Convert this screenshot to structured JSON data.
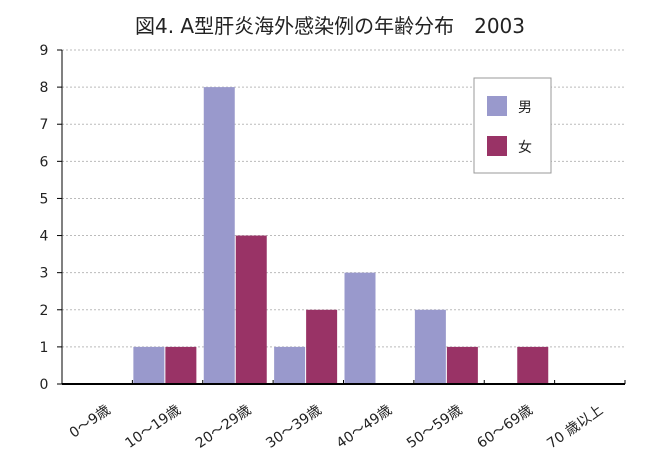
{
  "chart_data": {
    "type": "bar",
    "title": "図4. A型肝炎海外感染例の年齢分布　2003",
    "categories": [
      "0～9歳",
      "10～19歳",
      "20～29歳",
      "30～39歳",
      "40～49歳",
      "50～59歳",
      "60～69歳",
      "70 歳以上"
    ],
    "series": [
      {
        "name": "男",
        "values": [
          0,
          1,
          8,
          1,
          3,
          2,
          0,
          0
        ],
        "color": "#9999cc"
      },
      {
        "name": "女",
        "values": [
          0,
          1,
          4,
          2,
          0,
          1,
          1,
          0
        ],
        "color": "#993366"
      }
    ],
    "ylim": [
      0,
      9
    ],
    "yticks": [
      0,
      1,
      2,
      3,
      4,
      5,
      6,
      7,
      8,
      9
    ],
    "grid": true,
    "legend": "top-right",
    "xlabel": "",
    "ylabel": ""
  }
}
